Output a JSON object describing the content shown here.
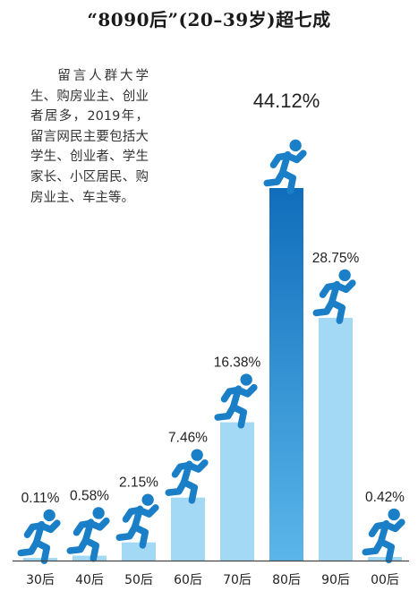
{
  "title": "“8090后”(20–39岁)超七成",
  "note": "    留言人群大学生、购房业主、创业者居多，2019年，留言网民主要包括大学生、创业者、学生家长、小区居民、购房业主、车主等。",
  "colors": {
    "bar": "#a4d9f5",
    "bar_highlight": "#1577c4",
    "runner": "#1a7fc7",
    "axis": "#444444"
  },
  "icon": "running-person-icon",
  "chart_data": {
    "type": "bar",
    "categories": [
      "30后",
      "40后",
      "50后",
      "60后",
      "70后",
      "80后",
      "90后",
      "00后"
    ],
    "values": [
      0.11,
      0.58,
      2.15,
      7.46,
      16.38,
      44.12,
      28.75,
      0.42
    ],
    "data_labels": [
      "0.11%",
      "0.58%",
      "2.15%",
      "7.46%",
      "16.38%",
      "44.12%",
      "28.75%",
      "0.42%"
    ],
    "highlight_index": 5,
    "ylim": [
      0,
      44.12
    ],
    "grid": false,
    "legend": "none"
  }
}
